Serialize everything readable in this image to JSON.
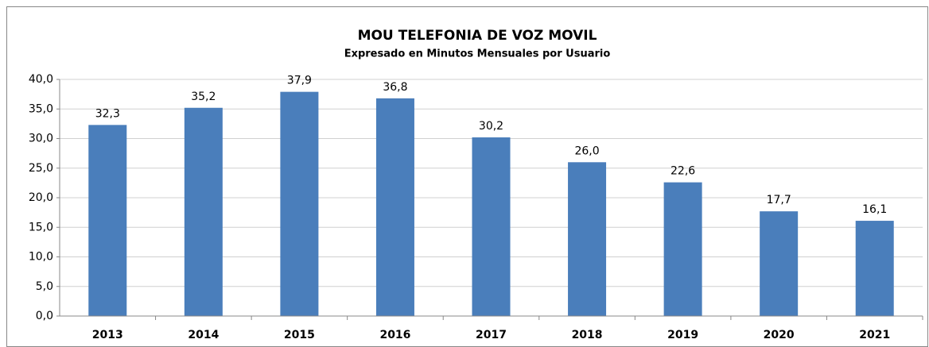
{
  "chart_data": {
    "type": "bar",
    "title": "MOU TELEFONIA DE VOZ MOVIL",
    "subtitle": "Expresado en Minutos Mensuales por Usuario",
    "categories": [
      "2013",
      "2014",
      "2015",
      "2016",
      "2017",
      "2018",
      "2019",
      "2020",
      "2021"
    ],
    "values": [
      32.3,
      35.2,
      37.9,
      36.8,
      30.2,
      26.0,
      22.6,
      17.7,
      16.1
    ],
    "value_labels": [
      "32,3",
      "35,2",
      "37,9",
      "36,8",
      "30,2",
      "26,0",
      "22,6",
      "17,7",
      "16,1"
    ],
    "color": "#4a7ebb",
    "ylim": [
      0,
      40
    ],
    "yticks": [
      {
        "value": 0,
        "label": "0,0"
      },
      {
        "value": 5,
        "label": "5,0"
      },
      {
        "value": 10,
        "label": "10,0"
      },
      {
        "value": 15,
        "label": "15,0"
      },
      {
        "value": 20,
        "label": "20,0"
      },
      {
        "value": 25,
        "label": "25,0"
      },
      {
        "value": 30,
        "label": "30,0"
      },
      {
        "value": 35,
        "label": "35,0"
      },
      {
        "value": 40,
        "label": "40,0"
      }
    ],
    "grid": true
  }
}
